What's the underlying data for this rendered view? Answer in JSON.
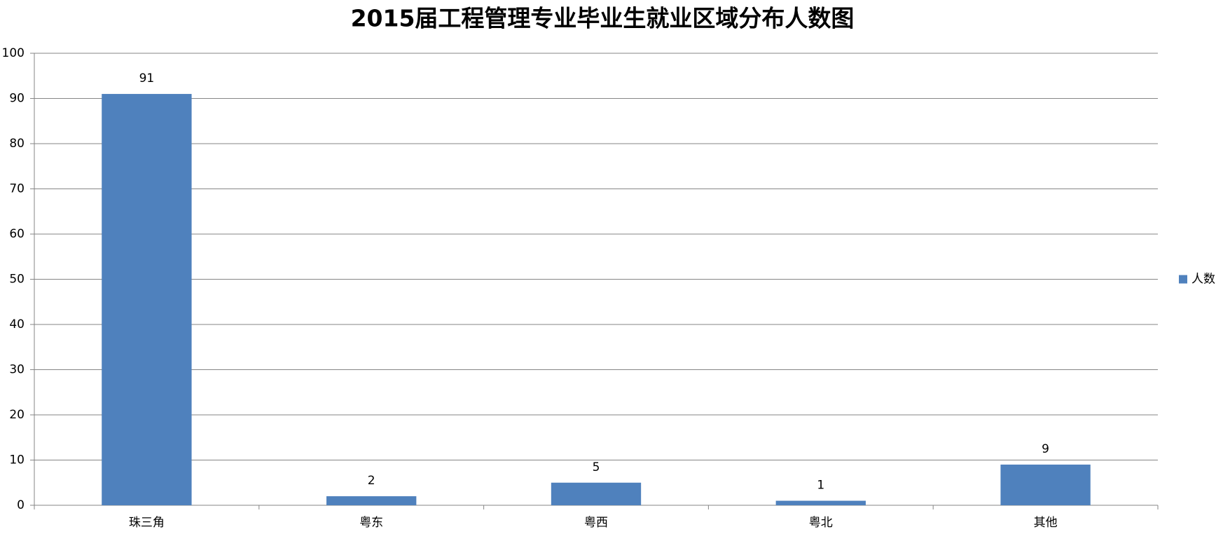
{
  "chart_data": {
    "type": "bar",
    "title": "2015届工程管理专业毕业生就业区域分布人数图",
    "categories": [
      "珠三角",
      "粤东",
      "粤西",
      "粤北",
      "其他"
    ],
    "series": [
      {
        "name": "人数",
        "color": "#4f81bd",
        "values": [
          91,
          2,
          5,
          1,
          9
        ]
      }
    ],
    "ylim": [
      0,
      100
    ],
    "yticks": [
      0,
      10,
      20,
      30,
      40,
      50,
      60,
      70,
      80,
      90,
      100
    ],
    "grid": true,
    "legend": "right",
    "data_labels": true
  }
}
